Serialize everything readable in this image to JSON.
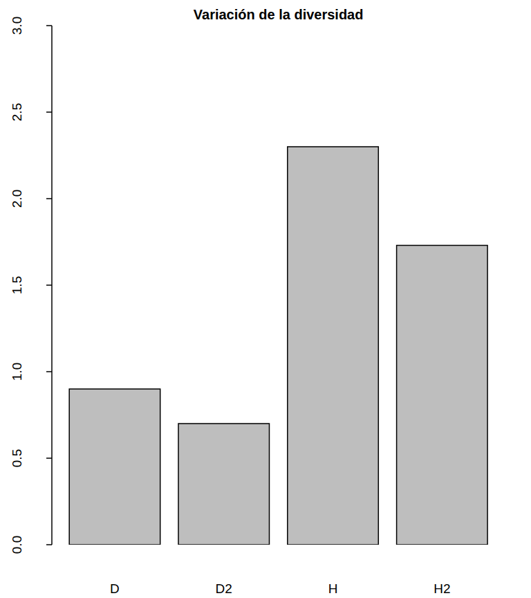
{
  "chart_data": {
    "type": "bar",
    "title": "Variación de la diversidad",
    "categories": [
      "D",
      "D2",
      "H",
      "H2"
    ],
    "values": [
      0.9,
      0.7,
      2.3,
      1.73
    ],
    "color": "#bebebe",
    "ylim": [
      0,
      3
    ],
    "yticks": [
      {
        "value": 0,
        "label": "0.0"
      },
      0.5,
      {
        "value": 1,
        "label": "1.0"
      },
      1.5,
      {
        "value": 2,
        "label": "2.0"
      },
      2.5,
      {
        "value": 3,
        "label": "3.0"
      }
    ],
    "grid": false
  }
}
